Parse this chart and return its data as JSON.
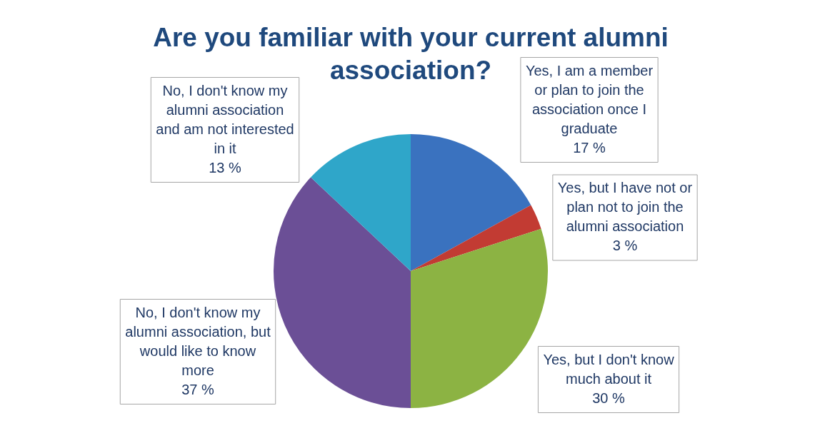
{
  "chart_data": {
    "type": "pie",
    "title": "Are you familiar with your current alumni association?",
    "categories": [
      "Yes, I am a member or plan to join the association once I graduate",
      "Yes, but I have not or plan not to join the alumni association",
      "Yes, but I don't know much about it",
      "No, I don't know my alumni association, but would like to know more",
      "No, I don't know my alumni association and am not interested in it"
    ],
    "values": [
      17,
      3,
      30,
      37,
      13
    ],
    "value_labels": [
      "17 %",
      "3 %",
      "30 %",
      "37 %",
      "13 %"
    ],
    "colors": [
      "#3a72bf",
      "#c23b33",
      "#8cb343",
      "#6b4f96",
      "#2fa6c9"
    ],
    "legend": false
  }
}
